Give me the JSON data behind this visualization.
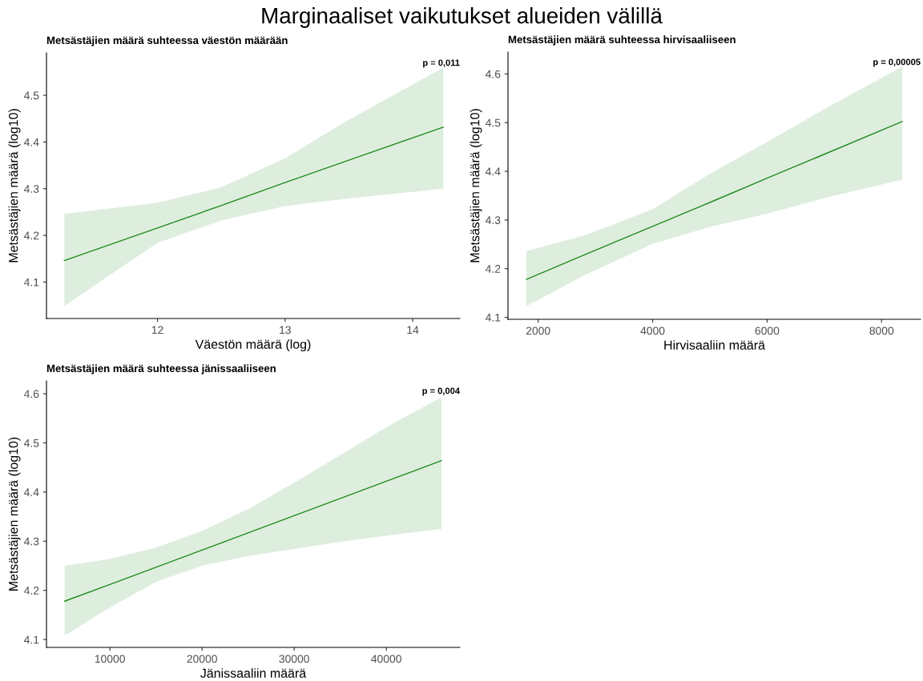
{
  "chart_data": [
    {
      "type": "other",
      "title": "Marginaaliset vaikutukset alueiden välillä"
    },
    {
      "type": "line",
      "title": "Metsästäjien määrä suhteessa väestön määrään",
      "xlabel": "Väestön määrä (log)",
      "ylabel": "Metsästäjien määrä (log10)",
      "annotations": [
        "p = 0,011"
      ],
      "xlim": [
        11.13,
        14.37
      ],
      "xticks": [
        12,
        13,
        14
      ],
      "ylim": [
        4.022,
        4.591
      ],
      "yticks": [
        4.1,
        4.2,
        4.3,
        4.4,
        4.5
      ],
      "grid": false,
      "legend": false,
      "series": [
        {
          "color": "#228b22",
          "x": [
            11.27,
            12,
            12.5,
            13,
            13.5,
            14.24
          ],
          "values": [
            4.146,
            4.216,
            4.264,
            4.313,
            4.361,
            4.432
          ],
          "lower": [
            4.049,
            4.184,
            4.232,
            4.263,
            4.279,
            4.3
          ],
          "upper": [
            4.246,
            4.27,
            4.303,
            4.365,
            4.448,
            4.559
          ]
        }
      ]
    },
    {
      "type": "line",
      "title": "Metsästäjien määrä suhteessa hirvisaaliiseen",
      "xlabel": "Hirvisaaliin määrä",
      "ylabel": "Metsästäjien määrä (log10)",
      "annotations": [
        "p = 0,00005"
      ],
      "xlim": [
        1472,
        8682
      ],
      "xticks": [
        2000,
        4000,
        6000,
        8000
      ],
      "ylim": [
        4.096,
        4.645
      ],
      "yticks": [
        4.1,
        4.2,
        4.3,
        4.4,
        4.5,
        4.6
      ],
      "grid": false,
      "legend": false,
      "series": [
        {
          "color": "#228b22",
          "x": [
            1795,
            2800,
            4000,
            5000,
            6000,
            7000,
            8359
          ],
          "values": [
            4.178,
            4.228,
            4.287,
            4.336,
            4.386,
            4.435,
            4.502
          ],
          "lower": [
            4.123,
            4.186,
            4.251,
            4.286,
            4.313,
            4.345,
            4.383
          ],
          "upper": [
            4.236,
            4.268,
            4.322,
            4.395,
            4.46,
            4.528,
            4.615
          ]
        }
      ]
    },
    {
      "type": "line",
      "title": "Metsästäjien määrä suhteessa jänissaaliiseen",
      "xlabel": "Jänissaaliin määrä",
      "ylabel": "Metsästäjien määrä (log10)",
      "annotations": [
        "p = 0,004"
      ],
      "xlim": [
        3113,
        47986
      ],
      "xticks": [
        10000,
        20000,
        30000,
        40000
      ],
      "ylim": [
        4.084,
        4.626
      ],
      "yticks": [
        4.1,
        4.2,
        4.3,
        4.4,
        4.5,
        4.6
      ],
      "grid": false,
      "legend": false,
      "series": [
        {
          "color": "#228b22",
          "x": [
            5085,
            10000,
            15000,
            20000,
            25000,
            30000,
            35000,
            40000,
            45990
          ],
          "values": [
            4.178,
            4.212,
            4.247,
            4.282,
            4.317,
            4.352,
            4.387,
            4.422,
            4.464
          ],
          "lower": [
            4.108,
            4.165,
            4.217,
            4.25,
            4.27,
            4.284,
            4.299,
            4.311,
            4.325
          ],
          "upper": [
            4.25,
            4.264,
            4.287,
            4.321,
            4.365,
            4.419,
            4.475,
            4.532,
            4.593
          ]
        }
      ]
    }
  ]
}
